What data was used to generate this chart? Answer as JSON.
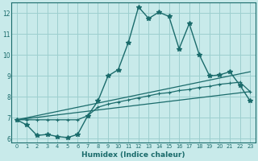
{
  "xlabel": "Humidex (Indice chaleur)",
  "xlim": [
    -0.5,
    23.5
  ],
  "ylim": [
    5.8,
    12.5
  ],
  "yticks": [
    6,
    7,
    8,
    9,
    10,
    11,
    12
  ],
  "xticks": [
    0,
    1,
    2,
    3,
    4,
    5,
    6,
    7,
    8,
    9,
    10,
    11,
    12,
    13,
    14,
    15,
    16,
    17,
    18,
    19,
    20,
    21,
    22,
    23
  ],
  "bg_color": "#c8eaea",
  "line_color": "#1a6b6b",
  "grid_color": "#9dcfcf",
  "line1_x": [
    0,
    1,
    2,
    3,
    4,
    5,
    6,
    7,
    8,
    9,
    10,
    11,
    12,
    13,
    14,
    15,
    16,
    17,
    18,
    19,
    20,
    21,
    22,
    23
  ],
  "line1_y": [
    6.9,
    6.65,
    6.15,
    6.2,
    6.1,
    6.05,
    6.2,
    7.1,
    7.8,
    9.0,
    9.3,
    10.6,
    12.3,
    11.75,
    12.05,
    11.85,
    10.3,
    11.5,
    10.0,
    9.0,
    9.05,
    9.2,
    8.55,
    7.8
  ],
  "line2_x": [
    0,
    1,
    2,
    3,
    4,
    5,
    6,
    7,
    8,
    9,
    10,
    11,
    12,
    13,
    14,
    15,
    16,
    17,
    18,
    19,
    20,
    21,
    22,
    23
  ],
  "line2_y": [
    6.9,
    6.9,
    6.9,
    6.9,
    6.9,
    6.9,
    6.9,
    7.1,
    7.5,
    7.65,
    7.75,
    7.85,
    7.95,
    8.05,
    8.15,
    8.2,
    8.3,
    8.35,
    8.45,
    8.5,
    8.6,
    8.65,
    8.7,
    8.25
  ],
  "line3_x": [
    0,
    23
  ],
  "line3_y": [
    6.9,
    8.25
  ],
  "line4_x": [
    0,
    23
  ],
  "line4_y": [
    6.9,
    9.2
  ]
}
